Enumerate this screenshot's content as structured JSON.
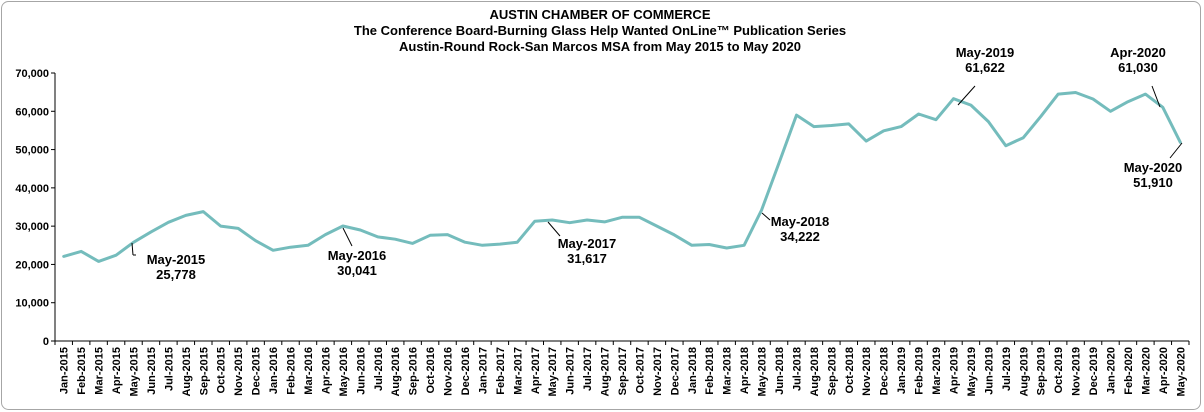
{
  "chart_data": {
    "type": "line",
    "title_lines": [
      "AUSTIN CHAMBER  OF COMMERCE",
      "The Conference Board-Burning  Glass  Help Wanted OnLine™ Publication Series",
      "Austin-Round  Rock-San Marcos MSA from May 2015 to May 2020"
    ],
    "xlabel": "",
    "ylabel": "",
    "ylim": [
      0,
      70000
    ],
    "yticks": [
      0,
      10000,
      20000,
      30000,
      40000,
      50000,
      60000,
      70000
    ],
    "ytick_labels": [
      "0",
      "10,000",
      "20,000",
      "30,000",
      "40,000",
      "50,000",
      "60,000",
      "70,000"
    ],
    "grid": false,
    "legend": "none",
    "line_color": "#74BCBC",
    "categories": [
      "Jan-2015",
      "Feb-2015",
      "Mar-2015",
      "Apr-2015",
      "May-2015",
      "Jun-2015",
      "Jul-2015",
      "Aug-2015",
      "Sep-2015",
      "Oct-2015",
      "Nov-2015",
      "Dec-2015",
      "Jan-2016",
      "Feb-2016",
      "Mar-2016",
      "Apr-2016",
      "May-2016",
      "Jun-2016",
      "Jul-2016",
      "Aug-2016",
      "Sep-2016",
      "Oct-2016",
      "Nov-2016",
      "Dec-2016",
      "Jan-2017",
      "Feb-2017",
      "Mar-2017",
      "Apr-2017",
      "May-2017",
      "Jun-2017",
      "Jul-2017",
      "Aug-2017",
      "Sep-2017",
      "Oct-2017",
      "Nov-2017",
      "Dec-2017",
      "Jan-2018",
      "Feb-2018",
      "Mar-2018",
      "Apr-2018",
      "May-2018",
      "Jun-2018",
      "Jul-2018",
      "Aug-2018",
      "Sep-2018",
      "Oct-2018",
      "Nov-2018",
      "Dec-2018",
      "Jan-2019",
      "Feb-2019",
      "Mar-2019",
      "Apr-2019",
      "May-2019",
      "Jun-2019",
      "Jul-2019",
      "Aug-2019",
      "Sep-2019",
      "Oct-2019",
      "Nov-2019",
      "Dec-2019",
      "Jan-2020",
      "Feb-2020",
      "Mar-2020",
      "Apr-2020",
      "May-2020"
    ],
    "values": [
      22100,
      23400,
      20800,
      22400,
      25778,
      28500,
      31000,
      32800,
      33800,
      30000,
      29400,
      26200,
      23700,
      24500,
      25000,
      27800,
      30041,
      29000,
      27200,
      26600,
      25500,
      27600,
      27800,
      25800,
      25000,
      25300,
      25800,
      31300,
      31617,
      30900,
      31600,
      31100,
      32300,
      32300,
      30000,
      27700,
      25000,
      25200,
      24300,
      25000,
      34222,
      46500,
      59000,
      56000,
      56300,
      56700,
      52200,
      54900,
      56000,
      59300,
      57800,
      63300,
      61622,
      57300,
      51000,
      53100,
      58600,
      64500,
      64900,
      63200,
      60000,
      62500,
      64500,
      61030,
      51910
    ],
    "annotations": [
      {
        "category": "May-2015",
        "lines": [
          "May-2015",
          "25,778"
        ]
      },
      {
        "category": "May-2016",
        "lines": [
          "May-2016",
          "30,041"
        ]
      },
      {
        "category": "May-2017",
        "lines": [
          "May-2017",
          "31,617"
        ]
      },
      {
        "category": "May-2018",
        "lines": [
          "May-2018",
          "34,222"
        ]
      },
      {
        "category": "May-2019",
        "lines": [
          "May-2019",
          "61,622"
        ]
      },
      {
        "category": "Apr-2020",
        "lines": [
          "Apr-2020",
          "61,030"
        ]
      },
      {
        "category": "May-2020",
        "lines": [
          "May-2020",
          "51,910"
        ]
      }
    ]
  }
}
